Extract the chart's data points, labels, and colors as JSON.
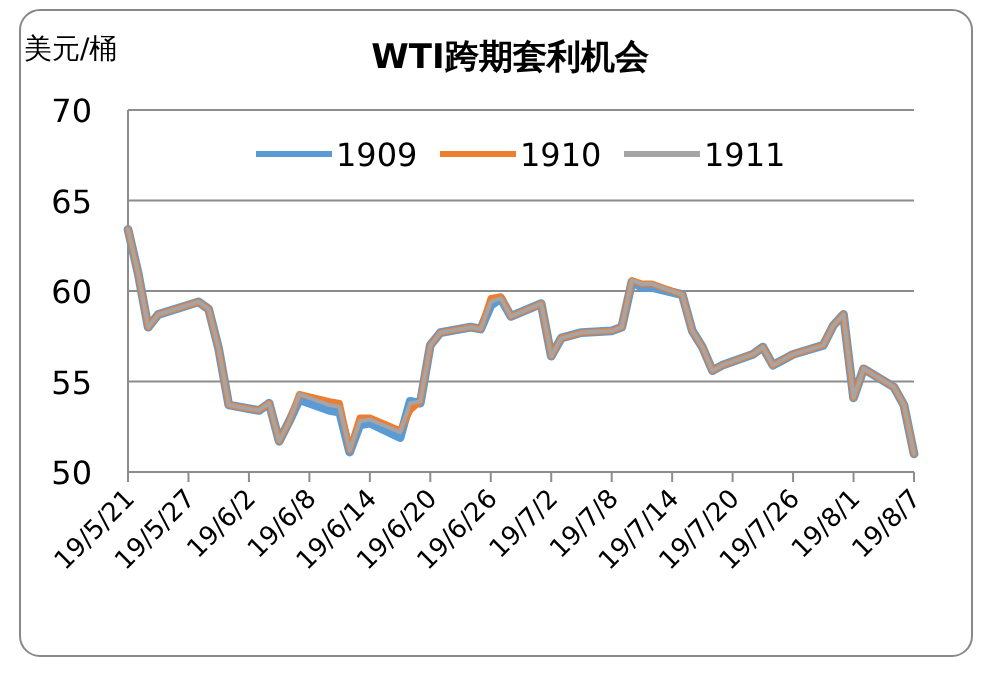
{
  "chart_data": {
    "type": "line",
    "title": "WTI跨期套利机会",
    "ylabel": "美元/桶",
    "x": [
      "--05-21",
      "--05-22",
      "--05-23",
      "--05-24",
      "--05-28",
      "--05-29",
      "--05-30",
      "--05-31",
      "--06-03",
      "--06-04",
      "--06-05",
      "--06-06",
      "--06-07",
      "--06-10",
      "--06-11",
      "--06-12",
      "--06-13",
      "--06-14",
      "--06-17",
      "--06-18",
      "--06-19",
      "--06-20",
      "--06-21",
      "--06-24",
      "--06-25",
      "--06-26",
      "--06-27",
      "--06-28",
      "--07-01",
      "--07-02",
      "--07-03",
      "--07-05",
      "--07-08",
      "--07-09",
      "--07-10",
      "--07-11",
      "--07-12",
      "--07-15",
      "--07-16",
      "--07-17",
      "--07-18",
      "--07-19",
      "--07-22",
      "--07-23",
      "--07-24",
      "--07-25",
      "--07-26",
      "--07-29",
      "--07-30",
      "--07-31",
      "--08-01",
      "--08-02",
      "--08-05",
      "--08-06",
      "--08-07"
    ],
    "series": [
      {
        "name": "1909",
        "color": "#5b9bd5",
        "values": [
          63.4,
          61.0,
          58.0,
          58.7,
          59.4,
          59.0,
          56.8,
          53.7,
          53.4,
          53.8,
          51.7,
          52.8,
          54.0,
          53.4,
          53.3,
          51.1,
          52.6,
          52.7,
          51.9,
          53.9,
          53.8,
          57.0,
          57.7,
          58.0,
          57.9,
          59.2,
          59.6,
          58.6,
          59.3,
          56.4,
          57.4,
          57.7,
          57.8,
          58.0,
          60.5,
          60.2,
          60.2,
          59.8,
          57.8,
          56.9,
          55.6,
          55.9,
          56.5,
          56.9,
          55.9,
          56.2,
          56.5,
          57.0,
          58.1,
          58.7,
          54.1,
          55.7,
          54.7,
          53.7,
          51.0
        ]
      },
      {
        "name": "1910",
        "color": "#ed7d31",
        "values": [
          63.4,
          61.0,
          58.0,
          58.7,
          59.4,
          59.0,
          56.8,
          53.7,
          53.4,
          53.8,
          51.7,
          52.8,
          54.3,
          53.9,
          53.8,
          51.2,
          53.0,
          53.0,
          52.3,
          53.4,
          53.9,
          57.0,
          57.7,
          58.0,
          57.9,
          59.6,
          59.7,
          58.6,
          59.3,
          56.4,
          57.4,
          57.7,
          57.8,
          58.0,
          60.6,
          60.4,
          60.4,
          59.8,
          57.8,
          56.9,
          55.6,
          55.9,
          56.5,
          56.9,
          55.9,
          56.2,
          56.5,
          57.0,
          58.1,
          58.7,
          54.1,
          55.7,
          54.7,
          53.7,
          51.0
        ]
      },
      {
        "name": "1911",
        "color": "#a5a5a5",
        "values": [
          63.4,
          61.0,
          58.0,
          58.7,
          59.4,
          59.0,
          56.8,
          53.7,
          53.4,
          53.8,
          51.7,
          52.8,
          54.3,
          53.7,
          53.6,
          51.2,
          52.8,
          52.9,
          52.2,
          53.8,
          53.9,
          57.0,
          57.7,
          58.0,
          57.9,
          59.4,
          59.6,
          58.6,
          59.3,
          56.4,
          57.4,
          57.7,
          57.8,
          58.0,
          60.6,
          60.4,
          60.4,
          59.8,
          57.8,
          56.9,
          55.6,
          55.9,
          56.5,
          56.9,
          55.9,
          56.2,
          56.5,
          57.0,
          58.1,
          58.7,
          54.1,
          55.7,
          54.7,
          53.7,
          51.0
        ]
      }
    ],
    "xlim": [
      "--05-21",
      "--08-07"
    ],
    "xticks": [
      {
        "value": "--05-21",
        "label": "19/5/21"
      },
      {
        "value": "--05-27",
        "label": "19/5/27"
      },
      {
        "value": "--06-02",
        "label": "19/6/2"
      },
      {
        "value": "--06-08",
        "label": "19/6/8"
      },
      {
        "value": "--06-14",
        "label": "19/6/14"
      },
      {
        "value": "--06-20",
        "label": "19/6/20"
      },
      {
        "value": "--06-26",
        "label": "19/6/26"
      },
      {
        "value": "--07-02",
        "label": "19/7/2"
      },
      {
        "value": "--07-08",
        "label": "19/7/8"
      },
      {
        "value": "--07-14",
        "label": "19/7/14"
      },
      {
        "value": "--07-20",
        "label": "19/7/20"
      },
      {
        "value": "--07-26",
        "label": "19/7/26"
      },
      {
        "value": "--08-01",
        "label": "19/8/1"
      },
      {
        "value": "--08-07",
        "label": "19/8/7"
      }
    ],
    "ylim": [
      50,
      70
    ],
    "yticks": [
      50,
      55,
      60,
      65,
      70
    ],
    "grid": "y",
    "legend": "top",
    "marker": "none",
    "line_style": "solid"
  }
}
